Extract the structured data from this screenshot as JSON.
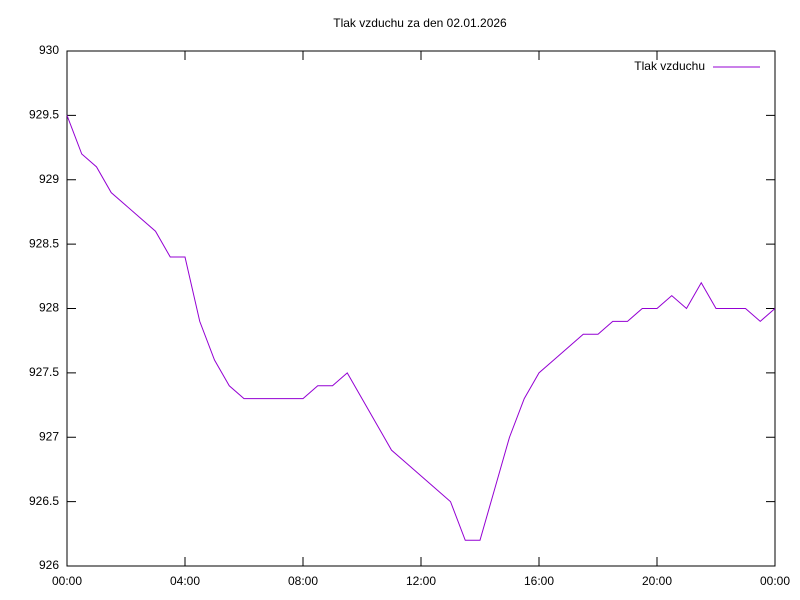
{
  "chart_data": {
    "type": "line",
    "title": "Tlak vzduchu za den 02.01.2026",
    "x": [
      0,
      0.5,
      1,
      1.5,
      2,
      2.5,
      3,
      3.5,
      4,
      4.5,
      5,
      5.5,
      6,
      6.5,
      7,
      7.5,
      8,
      8.5,
      9,
      9.5,
      10,
      10.5,
      11,
      11.5,
      12,
      12.5,
      13,
      13.5,
      14,
      14.5,
      15,
      15.5,
      16,
      16.5,
      17,
      17.5,
      18,
      18.5,
      19,
      19.5,
      20,
      20.5,
      21,
      21.5,
      22,
      22.5,
      23,
      23.5,
      24
    ],
    "series": [
      {
        "name": "Tlak vzduchu",
        "color": "#9400d3",
        "values": [
          929.5,
          929.2,
          929.1,
          928.9,
          928.8,
          928.7,
          928.6,
          928.4,
          928.4,
          927.9,
          927.6,
          927.4,
          927.3,
          927.3,
          927.3,
          927.3,
          927.3,
          927.4,
          927.4,
          927.5,
          927.3,
          927.1,
          926.9,
          926.8,
          926.7,
          926.6,
          926.5,
          926.2,
          926.2,
          926.6,
          927.0,
          927.3,
          927.5,
          927.6,
          927.7,
          927.8,
          927.8,
          927.9,
          927.9,
          928.0,
          928.0,
          928.1,
          928.0,
          928.2,
          928.0,
          928.0,
          928.0,
          927.9,
          928.0
        ]
      }
    ],
    "xlim": [
      0,
      24
    ],
    "xticks": [
      {
        "value": 0,
        "label": "00:00"
      },
      {
        "value": 4,
        "label": "04:00"
      },
      {
        "value": 8,
        "label": "08:00"
      },
      {
        "value": 12,
        "label": "12:00"
      },
      {
        "value": 16,
        "label": "16:00"
      },
      {
        "value": 20,
        "label": "20:00"
      },
      {
        "value": 24,
        "label": "00:00"
      }
    ],
    "ylim": [
      926,
      930
    ],
    "yticks": [
      926,
      926.5,
      927,
      927.5,
      928,
      928.5,
      929,
      929.5,
      930
    ],
    "grid": false,
    "legend": "top-right"
  }
}
